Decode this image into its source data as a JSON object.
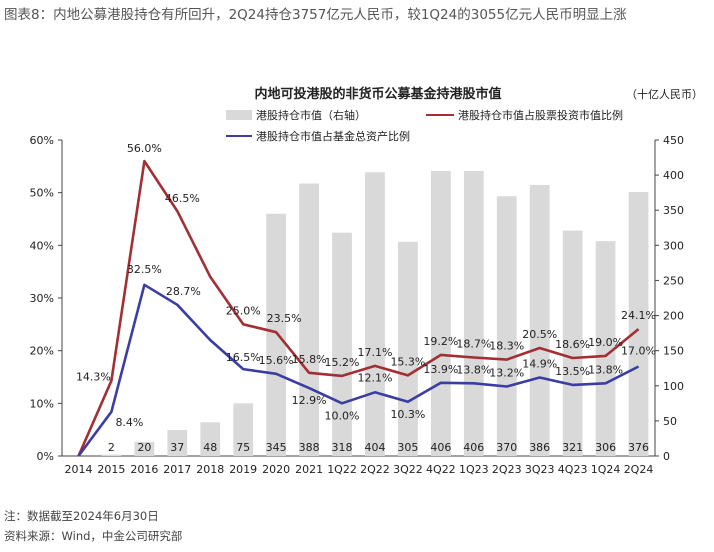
{
  "header": {
    "caption": "图表8：内地公募港股持仓有所回升，2Q24持仓3757亿元人民币，较1Q24的3055亿元人民币明显上涨"
  },
  "chart_data": {
    "type": "bar+line",
    "title": "内地可投港股的非货币公募基金持港股市值",
    "unit_label": "（十亿人民币）",
    "categories": [
      "2014",
      "2015",
      "2016",
      "2017",
      "2018",
      "2019",
      "2020",
      "2021",
      "1Q22",
      "2Q22",
      "3Q22",
      "4Q22",
      "1Q23",
      "2Q23",
      "3Q23",
      "4Q23",
      "1Q24",
      "2Q24"
    ],
    "left_ticks": [
      "0%",
      "10%",
      "20%",
      "30%",
      "40%",
      "50%",
      "60%"
    ],
    "right_ticks": [
      "0",
      "50",
      "100",
      "150",
      "200",
      "250",
      "300",
      "350",
      "400",
      "450"
    ],
    "ylim_left": [
      0,
      60
    ],
    "ylim_right": [
      0,
      450
    ],
    "bar_series": {
      "name": "港股持仓市值（右轴）",
      "values": [
        0,
        2,
        20,
        37,
        48,
        75,
        345,
        388,
        318,
        404,
        305,
        406,
        406,
        370,
        386,
        321,
        306,
        376
      ],
      "labels": [
        "",
        "2",
        "20",
        "37",
        "48",
        "75",
        "345",
        "388",
        "318",
        "404",
        "305",
        "406",
        "406",
        "370",
        "386",
        "321",
        "306",
        "376"
      ]
    },
    "line_series": [
      {
        "name": "港股持仓市值占股票投资市值比例",
        "color": "#a32f35",
        "values": [
          0,
          14.3,
          56.0,
          46.5,
          34.0,
          25.0,
          23.5,
          15.8,
          15.2,
          17.1,
          15.3,
          19.2,
          18.7,
          18.3,
          20.5,
          18.6,
          19.0,
          24.1
        ],
        "labels": [
          "",
          "14.3%",
          "56.0%",
          "46.5%",
          "",
          "25.0%",
          "23.5%",
          "15.8%",
          "15.2%",
          "17.1%",
          "15.3%",
          "19.2%",
          "18.7%",
          "18.3%",
          "20.5%",
          "18.6%",
          "19.0%",
          "24.1%"
        ]
      },
      {
        "name": "港股持仓市值占基金总资产比例",
        "color": "#3b3da3",
        "values": [
          0,
          8.4,
          32.5,
          28.7,
          22.0,
          16.5,
          15.6,
          12.9,
          10.0,
          12.1,
          10.3,
          13.9,
          13.8,
          13.2,
          14.9,
          13.5,
          13.8,
          17.0
        ],
        "labels": [
          "",
          "8.4%",
          "32.5%",
          "28.7%",
          "",
          "16.5%",
          "15.6%",
          "12.9%",
          "10.0%",
          "12.1%",
          "10.3%",
          "13.9%",
          "13.8%",
          "13.2%",
          "14.9%",
          "13.5%",
          "13.8%",
          "17.0%"
        ]
      }
    ],
    "bar_color": "#d9d9d9"
  },
  "footer": {
    "note": "注：数据截至2024年6月30日",
    "source": "资料来源：Wind，中金公司研究部"
  }
}
